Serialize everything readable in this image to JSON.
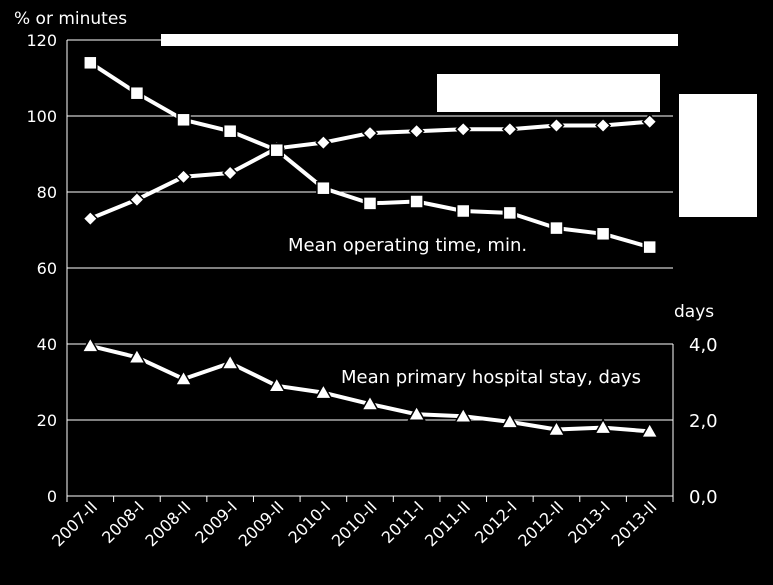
{
  "chart_data": {
    "type": "line",
    "ylabel": "% or minutes",
    "ylabel_right": "days",
    "ylim": [
      0,
      120
    ],
    "yticks": [
      "0",
      "20",
      "40",
      "60",
      "80",
      "100",
      "120"
    ],
    "ylim_right": [
      0,
      4
    ],
    "yticks_right": [
      "0,0",
      "2,0",
      "4,0"
    ],
    "categories": [
      "2007-II",
      "2008-I",
      "2008-II",
      "2009-I",
      "2009-II",
      "2010-I",
      "2010-II",
      "2011-I",
      "2011-II",
      "2012-I",
      "2012-II",
      "2013-I",
      "2013-II"
    ],
    "grid": true,
    "series": [
      {
        "label": "",
        "marker": "diamond",
        "axis": "left",
        "values": [
          73,
          78,
          84,
          85,
          91.5,
          93,
          95.5,
          96,
          96.5,
          96.5,
          97.5,
          97.5,
          98.5
        ]
      },
      {
        "label": "Mean operating time, min.",
        "marker": "square",
        "axis": "left",
        "values": [
          114,
          106,
          99,
          96,
          91,
          81,
          77,
          77.5,
          75,
          74.5,
          70.5,
          69,
          65.5
        ]
      },
      {
        "label": "Mean primary hospital stay, days",
        "marker": "triangle",
        "axis": "right",
        "values": [
          3.95,
          3.65,
          3.08,
          3.5,
          2.9,
          2.72,
          2.42,
          2.15,
          2.1,
          1.95,
          1.75,
          1.8,
          1.7
        ]
      }
    ]
  },
  "colors": {
    "background": "#000000",
    "line": "#ffffff",
    "grid": "#ffffff"
  }
}
